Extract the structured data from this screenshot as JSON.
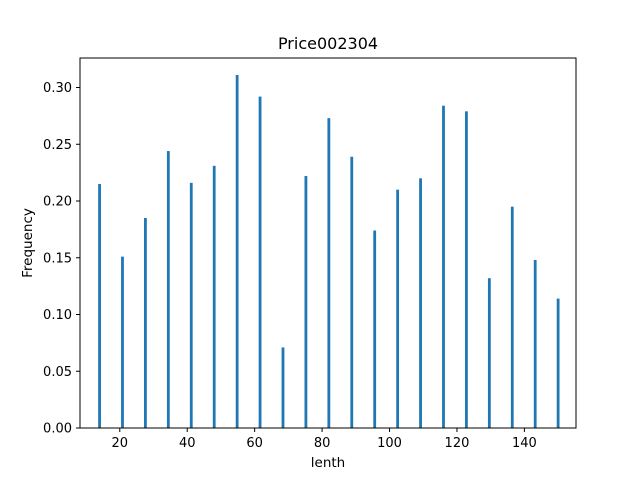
{
  "chart_data": {
    "type": "bar",
    "title": "Price002304",
    "xlabel": "lenth",
    "ylabel": "Frequency",
    "xlim": [
      8.2,
      155.3
    ],
    "ylim": [
      0,
      0.326
    ],
    "xticks": [
      20,
      40,
      60,
      80,
      100,
      120,
      140
    ],
    "yticks": [
      0.0,
      0.05,
      0.1,
      0.15,
      0.2,
      0.25,
      0.3
    ],
    "ytick_labels": [
      "0.00",
      "0.05",
      "0.10",
      "0.15",
      "0.20",
      "0.25",
      "0.30"
    ],
    "bar_color": "#1f77b4",
    "grid": false,
    "series": [
      {
        "x": [
          14,
          20.8,
          27.6,
          34.4,
          41.2,
          48,
          54.8,
          61.6,
          68.4,
          75.2,
          82,
          88.8,
          95.6,
          102.4,
          109.2,
          116,
          122.8,
          129.6,
          136.4,
          143.2,
          150
        ],
        "values": [
          0.215,
          0.151,
          0.185,
          0.244,
          0.216,
          0.231,
          0.311,
          0.292,
          0.071,
          0.222,
          0.273,
          0.239,
          0.174,
          0.21,
          0.22,
          0.284,
          0.279,
          0.132,
          0.195,
          0.148,
          0.114
        ]
      }
    ]
  }
}
